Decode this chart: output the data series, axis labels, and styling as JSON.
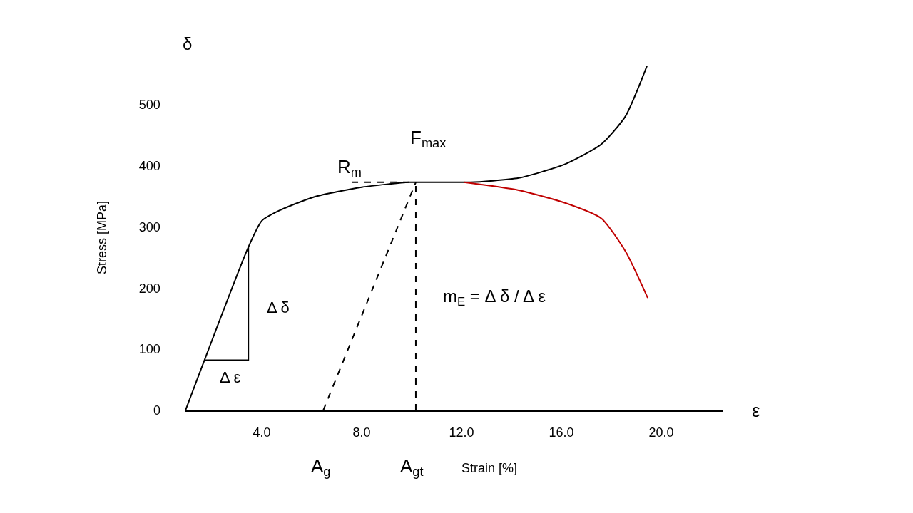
{
  "chart_data": {
    "type": "line",
    "xlabel": "Strain [%]",
    "ylabel": "Stress [MPa]",
    "xlim": [
      0.94,
      22.46
    ],
    "ylim": [
      0,
      565
    ],
    "xticks": [
      {
        "value": 4,
        "label": "4.0"
      },
      {
        "value": 8,
        "label": "8.0"
      },
      {
        "value": 12,
        "label": "12.0"
      },
      {
        "value": 16,
        "label": "16.0"
      },
      {
        "value": 20,
        "label": "20.0"
      }
    ],
    "yticks": [
      0,
      100,
      200,
      300,
      400,
      500
    ],
    "grid": false,
    "marker": "none",
    "series": [
      {
        "color": "#000000",
        "line_style": "solid",
        "x": [
          0.94,
          3.46,
          4.0,
          4.66,
          6.09,
          8.0,
          9.89,
          10.17,
          12.1,
          12.37,
          14.29,
          16.17,
          17.6,
          18.57,
          19.43
        ],
        "values": [
          0,
          267,
          310,
          326,
          349,
          365,
          373,
          373,
          373,
          373,
          380,
          403,
          435,
          481,
          563
        ]
      },
      {
        "color": "#c00000",
        "line_style": "solid",
        "x": [
          12.1,
          14.29,
          16.17,
          17.6,
          18.57,
          19.46
        ],
        "values": [
          373,
          360,
          339,
          314,
          260,
          184
        ]
      },
      {
        "color": "#000000",
        "line_style": "dashed",
        "x": [
          6.46,
          10.17
        ],
        "values": [
          0,
          373
        ]
      },
      {
        "color": "#000000",
        "line_style": "dashed",
        "x": [
          10.17,
          10.17
        ],
        "values": [
          0,
          373
        ]
      },
      {
        "color": "#000000",
        "line_style": "dashed",
        "x": [
          7.6,
          10.17
        ],
        "values": [
          373,
          373
        ]
      },
      {
        "color": "#000000",
        "line_style": "solid",
        "x": [
          1.71,
          3.46,
          3.46
        ],
        "values": [
          82,
          82,
          267
        ]
      }
    ],
    "annotations": [
      "F$_{max}$",
      "R$_{m}$",
      "Δ δ",
      "Δ ε",
      "A$_{g}$",
      "A$_{gt}$",
      "δ",
      "ε",
      "m$_{E}$ = Δ δ / Δ ε"
    ]
  }
}
